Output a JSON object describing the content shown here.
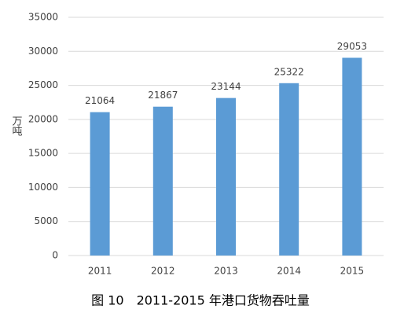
{
  "chart_data": {
    "type": "bar",
    "caption": "图 10　2011-2015 年港口货物吞吐量",
    "y_label": "万吨",
    "categories": [
      "2011",
      "2012",
      "2013",
      "2014",
      "2015"
    ],
    "values": [
      21064,
      21867,
      23144,
      25322,
      29053
    ],
    "color": "#5b9bd5",
    "ylim": [
      0,
      35000
    ],
    "yticks": [
      0,
      5000,
      10000,
      15000,
      20000,
      25000,
      30000,
      35000
    ],
    "grid": true
  }
}
